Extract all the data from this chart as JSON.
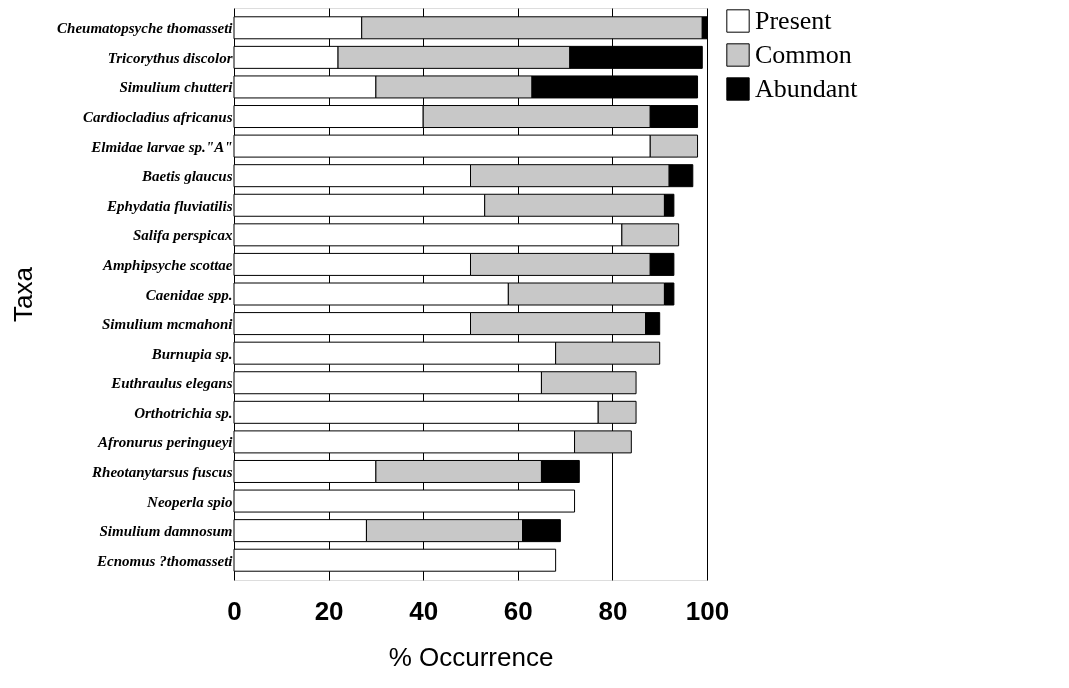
{
  "chart_data": {
    "type": "bar",
    "orientation": "horizontal",
    "stacked": true,
    "xlabel": "% Occurrence",
    "ylabel": "Taxa",
    "categories": [
      "Cheumatopsyche thomasseti",
      "Tricorythus discolor",
      "Simulium chutteri",
      "Cardiocladius africanus",
      "Elmidae larvae sp.\"A\"",
      "Baetis glaucus",
      "Ephydatia fluviatilis",
      "Salifa perspicax",
      "Amphipsyche scottae",
      "Caenidae spp.",
      "Simulium mcmahoni",
      "Burnupia sp.",
      "Euthraulus elegans",
      "Orthotrichia sp.",
      "Afronurus peringueyi",
      "Rheotanytarsus fuscus",
      "Neoperla spio",
      "Simulium damnosum",
      "Ecnomus ?thomasseti"
    ],
    "series": [
      {
        "name": "Present",
        "color": "#ffffff",
        "values": [
          27,
          22,
          30,
          40,
          88,
          50,
          53,
          82,
          50,
          58,
          50,
          68,
          65,
          77,
          72,
          30,
          72,
          28,
          68
        ]
      },
      {
        "name": "Common",
        "color": "#c8c8c8",
        "values": [
          72,
          49,
          33,
          48,
          10,
          42,
          38,
          12,
          38,
          33,
          37,
          22,
          20,
          8,
          12,
          35,
          null,
          33,
          null
        ]
      },
      {
        "name": "Abundant",
        "color": "#000000",
        "values": [
          1,
          28,
          35,
          10,
          null,
          5,
          2,
          null,
          5,
          2,
          3,
          null,
          null,
          null,
          null,
          8,
          null,
          8,
          null
        ]
      }
    ],
    "xlim": [
      0,
      100
    ],
    "xticks": [
      0,
      20,
      40,
      60,
      80,
      100
    ],
    "grid": "x",
    "legend": "right"
  }
}
